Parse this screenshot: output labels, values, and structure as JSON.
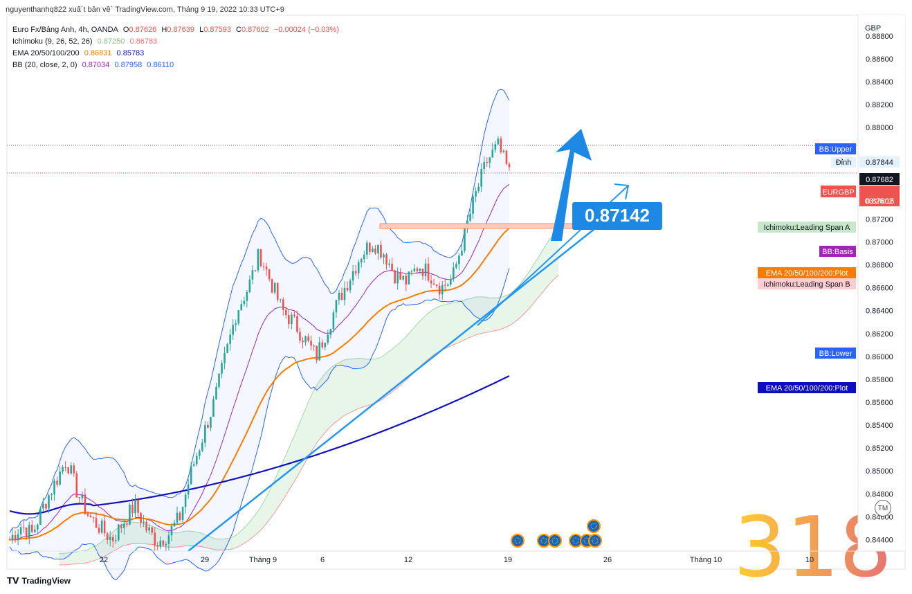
{
  "header": {
    "credit": "nguyenthanhq822 xuấ´t bản về` TradingView.com, Tháng 9 19, 2022 10:33 UTC+9"
  },
  "legend": {
    "symbol": "Euro Fx/Bảng Anh, 4h, OANDA",
    "ohlc": [
      {
        "k": "O",
        "v": "0.87626"
      },
      {
        "k": "H",
        "v": "0.87639"
      },
      {
        "k": "L",
        "v": "0.87593"
      },
      {
        "k": "C",
        "v": "0.87602"
      }
    ],
    "change": "−0.00024 (−0.03%)",
    "ichimoku": {
      "name": "Ichimoku (9, 26, 52, 26)",
      "v1": "0.87250",
      "v2": "0.86783"
    },
    "ema": {
      "name": "EMA 20/50/100/200",
      "v1": "0.86831",
      "v2": "0.85783"
    },
    "bb": {
      "name": "BB (20, close, 2, 0)",
      "v1": "0.87034",
      "v2": "0.87958",
      "v3": "0.86110"
    }
  },
  "colors": {
    "up": "#26a69a",
    "down": "#ef5350",
    "bb_upper": "#2962ff",
    "bb_basis": "#9c27b0",
    "ema_orange": "#f57c00",
    "ema_navy": "#1111bb",
    "ichimoku_a": "#a5d6a7",
    "ichimoku_b": "#ef9a9a",
    "arrow": "#1e88e5",
    "trend": "#2196f3"
  },
  "axis": {
    "currency": "GBP",
    "y_ticks": [
      "0.88800",
      "0.88600",
      "0.88400",
      "0.88200",
      "0.88000",
      "0.87400",
      "0.87200",
      "0.87000",
      "0.86800",
      "0.86600",
      "0.86400",
      "0.86200",
      "0.86000",
      "0.85800",
      "0.85600",
      "0.85400",
      "0.85200",
      "0.85000",
      "0.84800",
      "0.84600",
      "0.84400"
    ],
    "x_ticks": [
      "22",
      "29",
      "Tháng 9",
      "6",
      "12",
      "19",
      "26",
      "Tháng 10",
      "10"
    ]
  },
  "right_labels": {
    "bb_upper": "BB:Upper",
    "dinh": "Đỉnh",
    "dinh_value": "0.87844",
    "price_box": "0.87682",
    "eurgbp": "EURGBP",
    "eurgbp_value": "0.87602",
    "timer": "03:26:16",
    "span_a": "Ichimoku:Leading Span A",
    "bb_basis": "BB:Basis",
    "ema_plot": "EMA 20/50/100/200:Plot",
    "span_b": "Ichimoku:Leading Span B",
    "bb_lower": "BB:Lower",
    "ema_plot_2": "EMA 20/50/100/200:Plot"
  },
  "annotation": {
    "level_label": "0.87142",
    "watermark": "318"
  },
  "chart_data": {
    "type": "candlestick",
    "title": "Euro Fx/Bảng Anh, 4h, OANDA",
    "y_range": [
      0.843,
      0.8898
    ],
    "x_ticks": [
      "22",
      "29",
      "Tháng 9",
      "6",
      "12",
      "19",
      "26",
      "Tháng 10",
      "10"
    ],
    "horizontal_levels": {
      "peak": 0.87844,
      "last": 0.87602,
      "zone": 0.87142
    },
    "candles_close_path": [
      0.844,
      0.8452,
      0.8445,
      0.847,
      0.849,
      0.851,
      0.848,
      0.846,
      0.845,
      0.844,
      0.8455,
      0.847,
      0.845,
      0.8438,
      0.8445,
      0.846,
      0.85,
      0.853,
      0.856,
      0.86,
      0.864,
      0.866,
      0.869,
      0.8665,
      0.864,
      0.863,
      0.8615,
      0.86,
      0.8625,
      0.865,
      0.867,
      0.869,
      0.87,
      0.869,
      0.867,
      0.8665,
      0.868,
      0.8672,
      0.866,
      0.8668,
      0.8705,
      0.874,
      0.877,
      0.8784,
      0.876
    ],
    "indicators": [
      "Ichimoku (9, 26, 52, 26)",
      "EMA 20/50/100/200",
      "BB (20, close, 2, 0)"
    ],
    "legend": "top-left"
  }
}
